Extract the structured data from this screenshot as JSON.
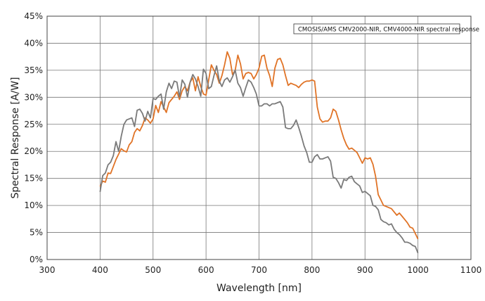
{
  "chart_data": {
    "type": "line",
    "title": "",
    "xlabel": "Wavelength [nm]",
    "ylabel": "Spectral Response [A/W]",
    "xlim": [
      300,
      1100
    ],
    "ylim": [
      0,
      45
    ],
    "xticks": [
      300,
      400,
      500,
      600,
      700,
      800,
      900,
      1000,
      1100
    ],
    "yticks": [
      0,
      5,
      10,
      15,
      20,
      25,
      30,
      35,
      40,
      45
    ],
    "yticks_format": "{v}%",
    "grid": true,
    "legend_text": "CMOSIS/AMS CMV2000-NIR, CMV4000-NIR spectral response",
    "legend_position": "top-right",
    "series": [
      {
        "color": "#e07326",
        "x": [
          400,
          405,
          410,
          415,
          420,
          425,
          430,
          435,
          440,
          445,
          450,
          455,
          460,
          465,
          470,
          475,
          480,
          485,
          490,
          495,
          500,
          505,
          510,
          515,
          520,
          525,
          530,
          535,
          540,
          545,
          550,
          555,
          560,
          565,
          570,
          575,
          580,
          585,
          590,
          595,
          600,
          605,
          610,
          615,
          620,
          625,
          630,
          635,
          640,
          645,
          650,
          655,
          660,
          665,
          670,
          675,
          680,
          685,
          690,
          695,
          700,
          705,
          710,
          715,
          720,
          725,
          730,
          735,
          740,
          745,
          750,
          755,
          760,
          765,
          770,
          775,
          780,
          785,
          790,
          795,
          800,
          805,
          810,
          815,
          820,
          825,
          830,
          835,
          840,
          845,
          850,
          855,
          860,
          865,
          870,
          875,
          880,
          885,
          890,
          895,
          900,
          905,
          910,
          915,
          920,
          925,
          930,
          935,
          940,
          945,
          950,
          955,
          960,
          965,
          970,
          975,
          980,
          985,
          990,
          995,
          1000
        ],
        "y": [
          13.5,
          14.5,
          14.3,
          16.0,
          15.9,
          17.2,
          18.5,
          19.5,
          20.5,
          20.1,
          19.9,
          21.2,
          21.8,
          23.5,
          24.2,
          23.8,
          24.8,
          26.2,
          25.8,
          25.2,
          26.0,
          28.5,
          27.2,
          29.2,
          28.2,
          27.2,
          29.0,
          29.6,
          30.2,
          31.0,
          29.6,
          31.2,
          32.0,
          31.2,
          32.8,
          33.6,
          31.2,
          33.8,
          32.0,
          30.6,
          30.4,
          33.2,
          36.0,
          35.0,
          34.2,
          32.6,
          34.0,
          36.0,
          38.4,
          37.2,
          34.2,
          35.0,
          37.8,
          36.2,
          33.4,
          34.4,
          34.6,
          34.4,
          33.4,
          34.2,
          35.4,
          37.6,
          37.8,
          35.4,
          34.0,
          32.0,
          35.4,
          37.0,
          37.2,
          36.0,
          34.0,
          32.2,
          32.6,
          32.4,
          32.2,
          31.8,
          32.4,
          32.8,
          33.0,
          33.0,
          33.2,
          33.0,
          28.2,
          26.0,
          25.4,
          25.6,
          25.6,
          26.2,
          27.8,
          27.4,
          25.8,
          24.0,
          22.4,
          21.2,
          20.4,
          20.6,
          20.2,
          19.8,
          18.8,
          17.8,
          18.8,
          18.6,
          18.8,
          17.6,
          15.4,
          12.0,
          11.0,
          10.0,
          9.8,
          9.6,
          9.4,
          8.8,
          8.2,
          8.6,
          8.0,
          7.4,
          6.8,
          6.0,
          5.8,
          4.8,
          3.8
        ]
      },
      {
        "color": "#7a7a7a",
        "x": [
          400,
          405,
          410,
          415,
          420,
          425,
          430,
          435,
          440,
          445,
          450,
          455,
          460,
          465,
          470,
          475,
          480,
          485,
          490,
          495,
          500,
          505,
          510,
          515,
          520,
          525,
          530,
          535,
          540,
          545,
          550,
          555,
          560,
          565,
          570,
          575,
          580,
          585,
          590,
          595,
          600,
          605,
          610,
          615,
          620,
          625,
          630,
          635,
          640,
          645,
          650,
          655,
          660,
          665,
          670,
          675,
          680,
          685,
          690,
          695,
          700,
          705,
          710,
          715,
          720,
          725,
          730,
          735,
          740,
          745,
          750,
          755,
          760,
          765,
          770,
          775,
          780,
          785,
          790,
          795,
          800,
          805,
          810,
          815,
          820,
          825,
          830,
          835,
          840,
          845,
          850,
          855,
          860,
          865,
          870,
          875,
          880,
          885,
          890,
          895,
          900,
          905,
          910,
          915,
          920,
          925,
          930,
          935,
          940,
          945,
          950,
          955,
          960,
          965,
          970,
          975,
          980,
          985,
          990,
          995,
          1000
        ],
        "y": [
          12.5,
          15.5,
          16.0,
          17.5,
          18.0,
          19.2,
          21.8,
          20.0,
          22.8,
          25.0,
          25.8,
          26.0,
          26.2,
          24.6,
          27.6,
          27.8,
          27.0,
          25.6,
          27.4,
          26.2,
          29.8,
          29.6,
          30.2,
          30.6,
          27.8,
          31.0,
          32.6,
          31.6,
          33.0,
          32.8,
          30.0,
          33.2,
          32.4,
          30.0,
          32.8,
          34.2,
          33.4,
          32.0,
          30.2,
          35.2,
          34.4,
          31.6,
          32.0,
          34.0,
          35.8,
          33.0,
          32.0,
          33.2,
          33.6,
          32.8,
          33.8,
          35.0,
          32.6,
          31.8,
          30.2,
          31.8,
          33.2,
          32.8,
          31.8,
          30.6,
          28.4,
          28.4,
          28.8,
          28.8,
          28.4,
          28.8,
          28.8,
          29.0,
          29.2,
          28.2,
          24.4,
          24.2,
          24.2,
          24.8,
          25.8,
          24.4,
          22.8,
          21.0,
          19.8,
          18.0,
          18.0,
          19.0,
          19.4,
          18.6,
          18.6,
          18.8,
          19.0,
          18.2,
          15.2,
          15.0,
          14.2,
          13.2,
          14.8,
          14.6,
          15.2,
          15.4,
          14.4,
          14.0,
          13.6,
          12.4,
          12.6,
          12.2,
          11.8,
          10.0,
          9.8,
          9.2,
          7.4,
          7.0,
          6.8,
          6.4,
          6.6,
          5.6,
          5.0,
          4.6,
          4.0,
          3.2,
          3.2,
          3.0,
          2.6,
          2.4,
          1.2
        ]
      }
    ]
  }
}
